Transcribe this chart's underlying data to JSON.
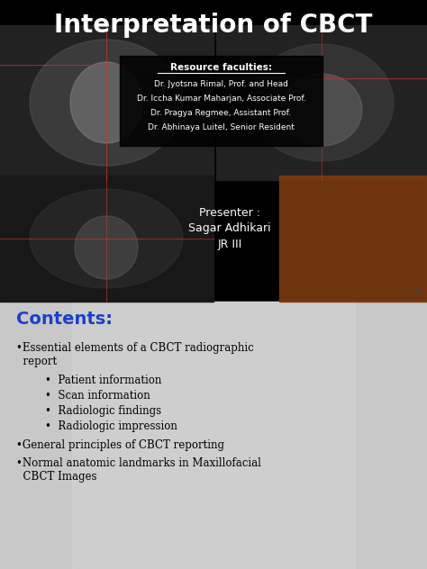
{
  "title": "Interpretation of CBCT",
  "title_color": "#ffffff",
  "title_fontsize": 20,
  "title_fontstyle": "bold",
  "top_bg_color": "#000000",
  "bottom_bg_color": "#c8c8c8",
  "split_ratio": 0.53,
  "resource_header": "Resource faculties:",
  "resource_lines": [
    "Dr. Jyotsna Rimal, Prof. and Head",
    "Dr. Iccha Kumar Maharjan, Associate Prof.",
    "Dr. Pragya Regmee, Assistant Prof.",
    "Dr. Abhinaya Luitel, Senior Resident"
  ],
  "presenter_lines": [
    "Presenter :",
    "Sagar Adhikari",
    "JR III"
  ],
  "page_number": "2",
  "contents_label": "Contents:",
  "contents_color": "#1a3fcc",
  "sub_bullets": [
    "Patient information",
    "Scan information",
    "Radiologic findings",
    "Radiologic impression"
  ],
  "bullet2": "General principles of CBCT reporting",
  "bullet3": "Normal anatomic landmarks in Maxillofacial\n  CBCT Images"
}
